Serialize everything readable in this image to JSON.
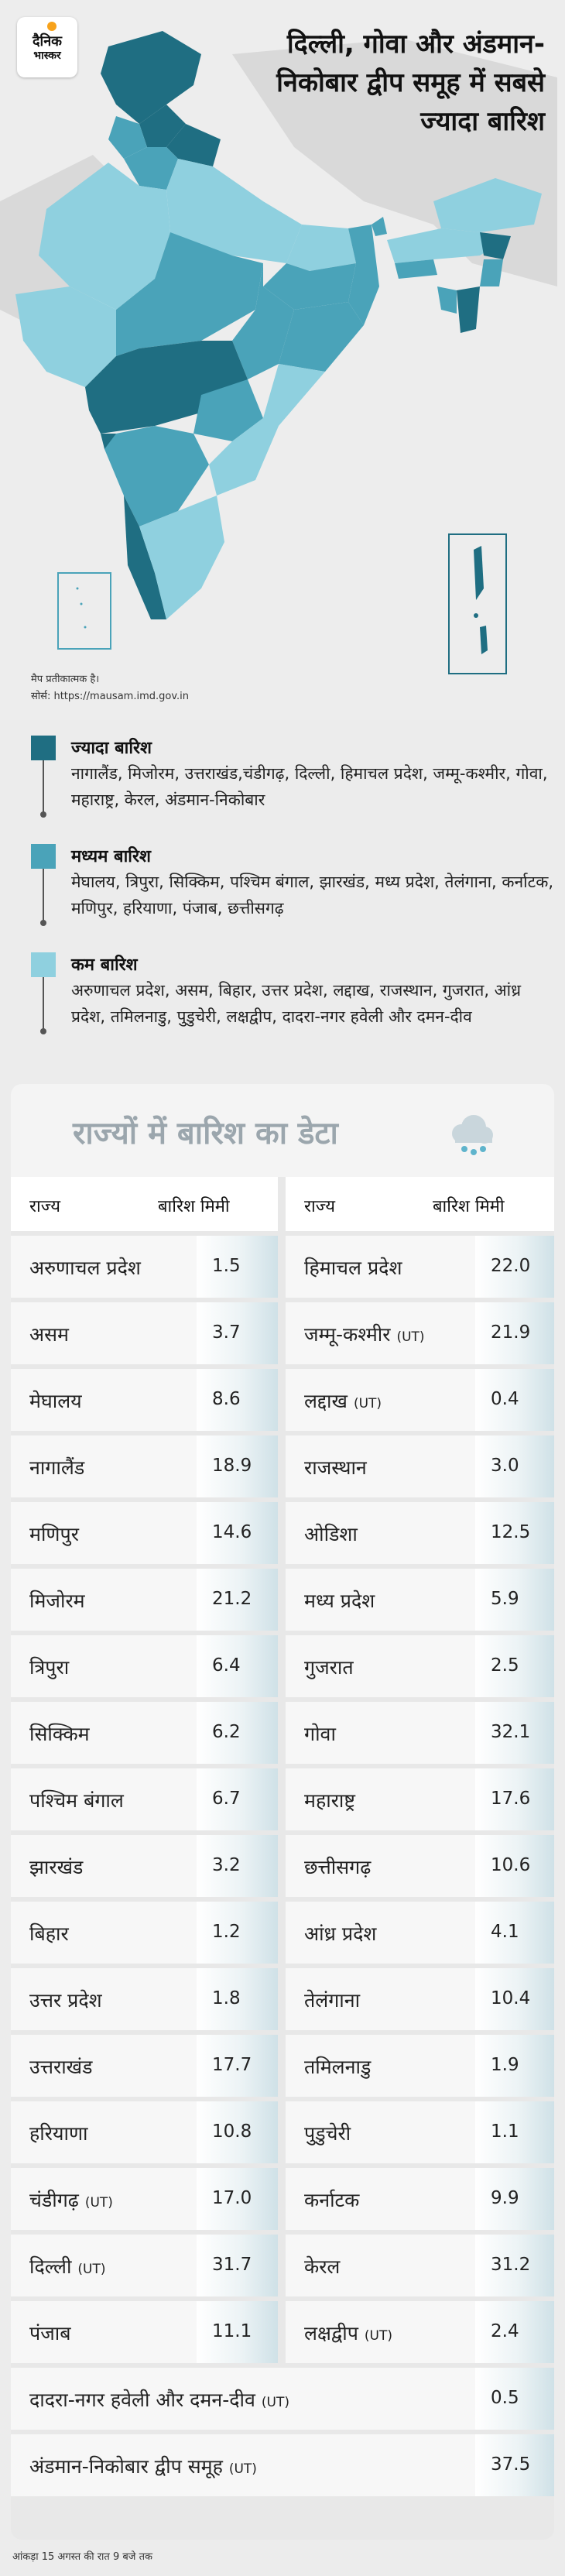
{
  "brand": {
    "line1": "दैनिक",
    "line2": "भास्कर"
  },
  "headline": "दिल्ली, गोवा और अंडमान-निकोबार द्वीप समूह में सबसे ज्यादा बारिश",
  "map": {
    "note": "मैप प्रतीकात्मक है।",
    "source": "सोर्स: https://mausam.imd.gov.in"
  },
  "colors": {
    "high": "#1f6e82",
    "medium": "#4aa3b9",
    "low": "#8fd0df"
  },
  "legend": [
    {
      "title": "ज्यादा बारिश",
      "color": "#1f6e82",
      "text": "नागालैंड, मिजोरम, उत्तराखंड,चंडीगढ़, दिल्ली, हिमाचल प्रदेश, जम्मू-कश्मीर, गोवा, महाराष्ट्र, केरल, अंडमान-निकोबार"
    },
    {
      "title": "मध्यम बारिश",
      "color": "#4aa3b9",
      "text": "मेघालय, त्रिपुरा, सिक्किम, पश्चिम बंगाल, झारखंड, मध्य प्रदेश, तेलंगाना, कर्नाटक, मणिपुर, हरियाणा, पंजाब, छत्तीसगढ़"
    },
    {
      "title": "कम बारिश",
      "color": "#8fd0df",
      "text": "अरुणाचल प्रदेश, असम, बिहार, उत्तर प्रदेश, लद्दाख, राजस्थान, गुजरात, आंध्र प्रदेश, तमिलनाडु, पुडुचेरी, लक्षद्वीप, दादरा-नगर हवेली और दमन-दीव"
    }
  ],
  "table": {
    "title": "राज्यों में बारिश का डेटा",
    "icon": "rain-cloud-icon",
    "headers": {
      "state": "राज्य",
      "rain": "बारिश मिमी"
    },
    "left": [
      {
        "name": "अरुणाचल प्रदेश",
        "ut": "",
        "value": "1.5"
      },
      {
        "name": "असम",
        "ut": "",
        "value": "3.7"
      },
      {
        "name": "मेघालय",
        "ut": "",
        "value": "8.6"
      },
      {
        "name": "नागालैंड",
        "ut": "",
        "value": "18.9"
      },
      {
        "name": "मणिपुर",
        "ut": "",
        "value": "14.6"
      },
      {
        "name": "मिजोरम",
        "ut": "",
        "value": "21.2"
      },
      {
        "name": "त्रिपुरा",
        "ut": "",
        "value": "6.4"
      },
      {
        "name": "सिक्किम",
        "ut": "",
        "value": "6.2"
      },
      {
        "name": "पश्चिम बंगाल",
        "ut": "",
        "value": "6.7"
      },
      {
        "name": "झारखंड",
        "ut": "",
        "value": "3.2"
      },
      {
        "name": "बिहार",
        "ut": "",
        "value": "1.2"
      },
      {
        "name": "उत्तर प्रदेश",
        "ut": "",
        "value": "1.8"
      },
      {
        "name": "उत्तराखंड",
        "ut": "",
        "value": "17.7"
      },
      {
        "name": "हरियाणा",
        "ut": "",
        "value": "10.8"
      },
      {
        "name": "चंडीगढ़",
        "ut": "(UT)",
        "value": "17.0"
      },
      {
        "name": "दिल्ली",
        "ut": "(UT)",
        "value": "31.7"
      },
      {
        "name": "पंजाब",
        "ut": "",
        "value": "11.1"
      }
    ],
    "right": [
      {
        "name": "हिमाचल प्रदेश",
        "ut": "",
        "value": "22.0"
      },
      {
        "name": "जम्मू-कश्मीर",
        "ut": "(UT)",
        "value": "21.9"
      },
      {
        "name": "लद्दाख",
        "ut": "(UT)",
        "value": "0.4"
      },
      {
        "name": "राजस्थान",
        "ut": "",
        "value": "3.0"
      },
      {
        "name": "ओडिशा",
        "ut": "",
        "value": "12.5"
      },
      {
        "name": "मध्य प्रदेश",
        "ut": "",
        "value": "5.9"
      },
      {
        "name": "गुजरात",
        "ut": "",
        "value": "2.5"
      },
      {
        "name": "गोवा",
        "ut": "",
        "value": "32.1"
      },
      {
        "name": "महाराष्ट्र",
        "ut": "",
        "value": "17.6"
      },
      {
        "name": "छत्तीसगढ़",
        "ut": "",
        "value": "10.6"
      },
      {
        "name": "आंध्र प्रदेश",
        "ut": "",
        "value": "4.1"
      },
      {
        "name": "तेलंगाना",
        "ut": "",
        "value": "10.4"
      },
      {
        "name": "तमिलनाडु",
        "ut": "",
        "value": "1.9"
      },
      {
        "name": "पुडुचेरी",
        "ut": "",
        "value": "1.1"
      },
      {
        "name": "कर्नाटक",
        "ut": "",
        "value": "9.9"
      },
      {
        "name": "केरल",
        "ut": "",
        "value": "31.2"
      },
      {
        "name": "लक्षद्वीप",
        "ut": "(UT)",
        "value": "2.4"
      }
    ],
    "full": [
      {
        "name": "दादरा-नगर हवेली और दमन-दीव",
        "ut": "(UT)",
        "value": "0.5"
      },
      {
        "name": "अंडमान-निकोबार द्वीप समूह",
        "ut": "(UT)",
        "value": "37.5"
      }
    ]
  },
  "footer": "आंकड़ा 15 अगस्त की रात 9 बजे तक"
}
